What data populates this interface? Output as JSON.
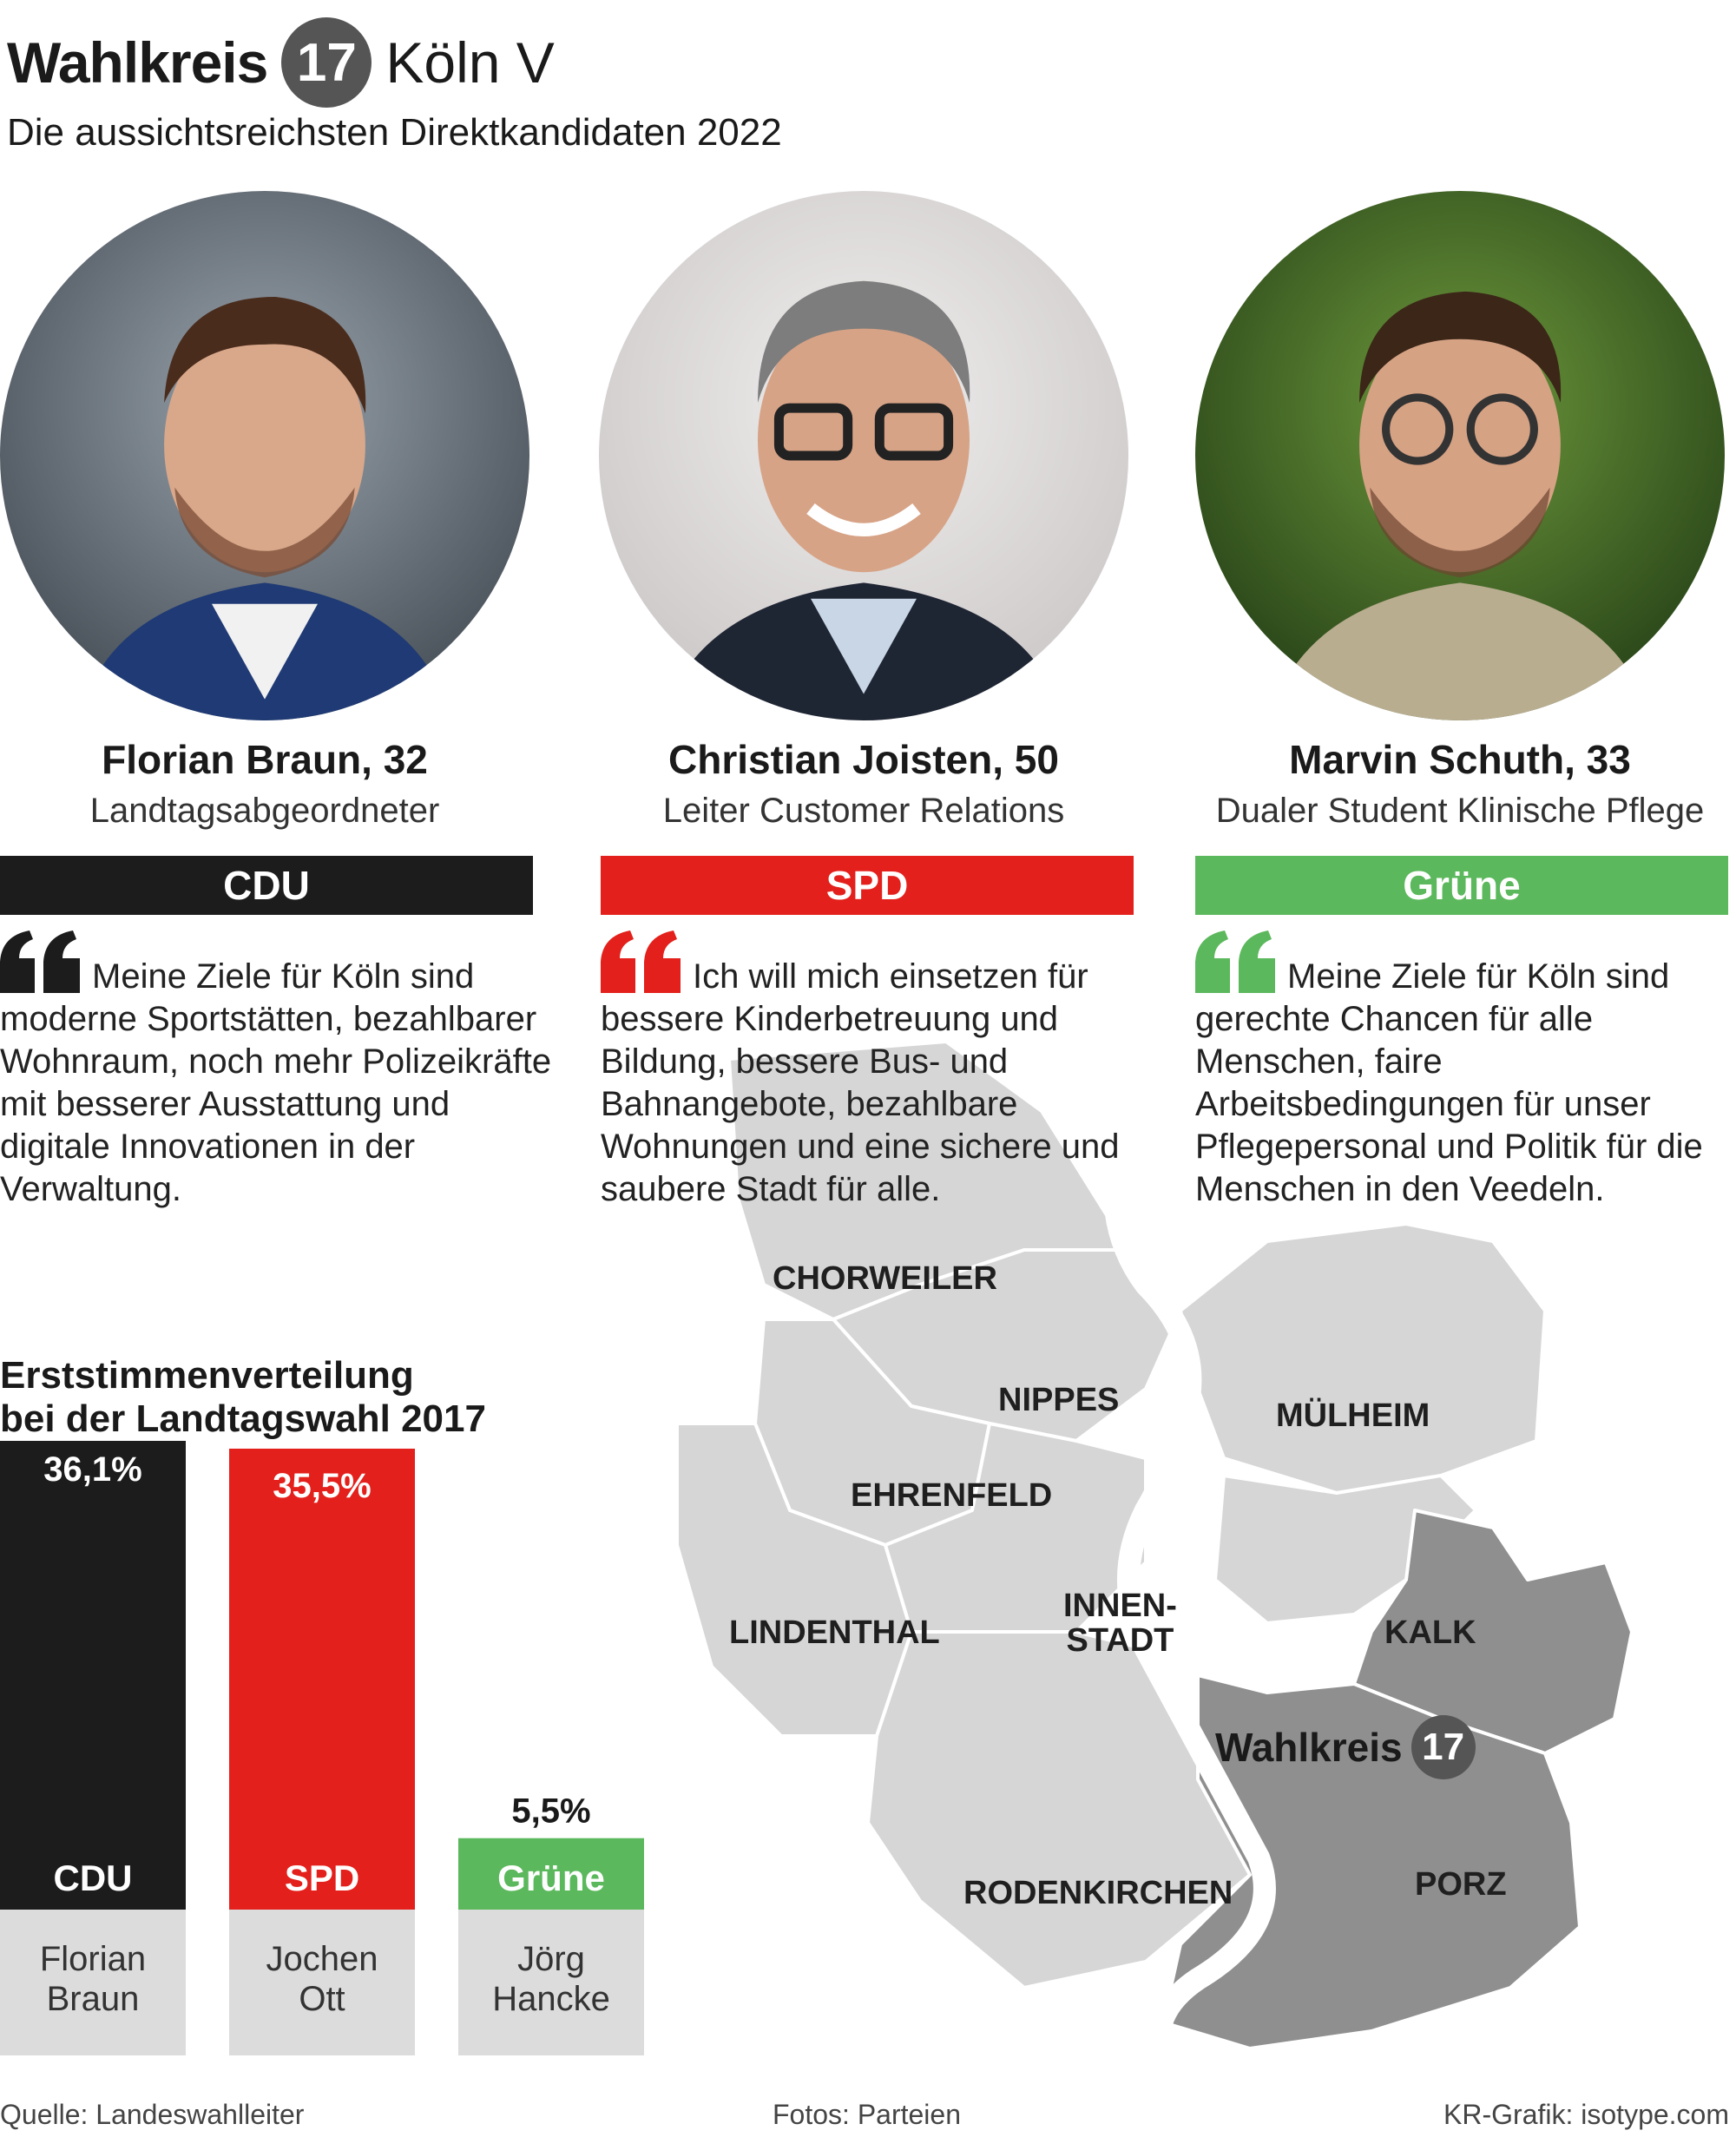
{
  "header": {
    "title": "Wahlkreis",
    "district_number": "17",
    "city": "Köln V",
    "subtitle": "Die aussichtsreichsten Direktkandidaten 2022"
  },
  "candidates": [
    {
      "name": "Florian Braun, 32",
      "job": "Landtagsabgeordneter",
      "party": "CDU",
      "color": "#1c1c1c",
      "quote": "Meine Ziele für Köln sind moderne Sportstätten, bezahlbarer Wohnraum, noch mehr Polizeikräfte mit besserer Ausstattung und digitale Innovationen in der Verwaltung."
    },
    {
      "name": "Christian Joisten, 50",
      "job": "Leiter Customer Relations",
      "party": "SPD",
      "color": "#e3201b",
      "quote": "Ich will mich einsetzen für bessere Kinderbetreuung und Bildung, bessere Bus- und Bahnangebote, bezahlbare Wohnungen und eine sichere und saubere Stadt für alle."
    },
    {
      "name": "Marvin Schuth, 33",
      "job": "Dualer Student Klinische Pflege",
      "party": "Grüne",
      "color": "#5cb85c",
      "quote": "Meine Ziele für Köln sind gerechte Chancen für alle Menschen, faire Arbeitsbedingungen für unser Pflegepersonal und Politik für die Menschen in den Veedeln."
    }
  ],
  "map": {
    "districts": [
      "CHORWEILER",
      "NIPPES",
      "MÜLHEIM",
      "EHRENFELD",
      "INNEN-\nSTADT",
      "LINDENTHAL",
      "KALK",
      "RODENKIRCHEN",
      "PORZ"
    ],
    "highlight_label": "Wahlkreis",
    "highlight_number": "17",
    "colors": {
      "district": "#d6d6d6",
      "highlight": "#8f8f8f",
      "river": "#ffffff"
    }
  },
  "chart_data": {
    "type": "bar",
    "title": "Erststimmenverteilung\nbei der Landtagswahl 2017",
    "categories": [
      "CDU",
      "SPD",
      "Grüne"
    ],
    "values": [
      36.1,
      35.5,
      5.5
    ],
    "value_labels": [
      "36,1%",
      "35,5%",
      "5,5%"
    ],
    "candidates": [
      "Florian\nBraun",
      "Jochen\nOtt",
      "Jörg\nHancke"
    ],
    "colors": [
      "#1c1c1c",
      "#e3201b",
      "#5cb85c"
    ],
    "ylim": [
      0,
      36.1
    ]
  },
  "footer": {
    "source": "Quelle: Landeswahlleiter",
    "photos": "Fotos: Parteien",
    "graphic": "KR-Grafik: isotype.com"
  }
}
